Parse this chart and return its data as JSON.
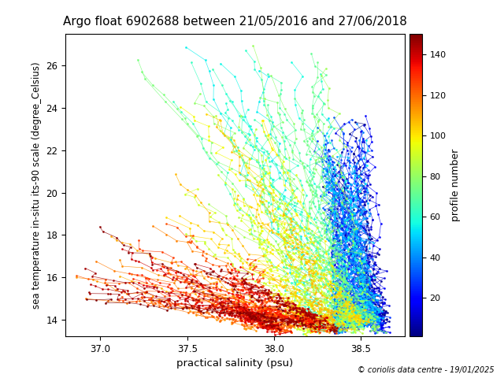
{
  "title": "Argo float 6902688 between 21/05/2016 and 27/06/2018",
  "xlabel": "practical salinity (psu)",
  "ylabel": "sea temperature in-situ its-90 scale (degree_Celsius)",
  "cbar_label": "profile number",
  "xlim": [
    36.8,
    38.75
  ],
  "ylim": [
    13.2,
    27.5
  ],
  "n_profiles": 150,
  "colormap": "jet",
  "footnote": "© coriolis data centre - 19/01/2025",
  "background": "white",
  "cbar_ticks": [
    20,
    40,
    60,
    80,
    100,
    120,
    140
  ],
  "xticks": [
    37.0,
    37.5,
    38.0,
    38.5
  ],
  "yticks": [
    14,
    16,
    18,
    20,
    22,
    24,
    26
  ]
}
